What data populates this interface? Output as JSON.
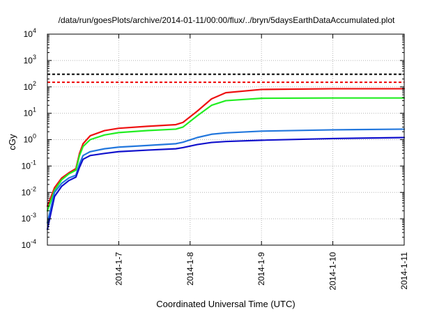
{
  "chart_data": {
    "type": "line",
    "title": "/data/run/goesPlots/archive/2014-01-11/00:00/flux/../bryn/5daysEarthDataAccumulated.plot",
    "xlabel": "Coordinated Universal Time (UTC)",
    "ylabel": "cGy",
    "yscale": "log",
    "ylim": [
      0.0001,
      10000
    ],
    "xlim": [
      "2014-01-06 00:00",
      "2014-01-11 00:00"
    ],
    "grid": true,
    "x_ticks": [
      "2014-1-7",
      "2014-1-8",
      "2014-1-9",
      "2014-1-10",
      "2014-1-11"
    ],
    "y_ticks": [
      {
        "base": "10",
        "exp": "-4"
      },
      {
        "base": "10",
        "exp": "-3"
      },
      {
        "base": "10",
        "exp": "-2"
      },
      {
        "base": "10",
        "exp": "-1"
      },
      {
        "base": "10",
        "exp": "0"
      },
      {
        "base": "10",
        "exp": "1"
      },
      {
        "base": "10",
        "exp": "2"
      },
      {
        "base": "10",
        "exp": "3"
      },
      {
        "base": "10",
        "exp": "4"
      }
    ],
    "hlines": [
      {
        "y": 300,
        "color": "#000000",
        "style": "dashed"
      },
      {
        "y": 150,
        "color": "#ee0000",
        "style": "dashed"
      }
    ],
    "series": [
      {
        "color": "#ee1111",
        "x": [
          "2014-01-06 00:00",
          "2014-01-06 02:24",
          "2014-01-06 04:48",
          "2014-01-06 07:12",
          "2014-01-06 09:36",
          "2014-01-06 10:48",
          "2014-01-06 12:00",
          "2014-01-06 14:24",
          "2014-01-06 19:12",
          "2014-01-07 00:00",
          "2014-01-07 09:36",
          "2014-01-07 19:12",
          "2014-01-07 21:36",
          "2014-01-08 02:24",
          "2014-01-08 07:12",
          "2014-01-08 12:00",
          "2014-01-09 00:00",
          "2014-01-10 00:00",
          "2014-01-11 00:00"
        ],
        "y": [
          0.003,
          0.015,
          0.035,
          0.055,
          0.08,
          0.3,
          0.7,
          1.4,
          2.2,
          2.7,
          3.2,
          3.7,
          4.5,
          12,
          35,
          60,
          80,
          85,
          85
        ]
      },
      {
        "color": "#22ee22",
        "x": [
          "2014-01-06 00:00",
          "2014-01-06 02:24",
          "2014-01-06 04:48",
          "2014-01-06 07:12",
          "2014-01-06 09:36",
          "2014-01-06 10:48",
          "2014-01-06 12:00",
          "2014-01-06 14:24",
          "2014-01-06 19:12",
          "2014-01-07 00:00",
          "2014-01-07 09:36",
          "2014-01-07 19:12",
          "2014-01-07 21:36",
          "2014-01-08 02:24",
          "2014-01-08 07:12",
          "2014-01-08 12:00",
          "2014-01-09 00:00",
          "2014-01-10 00:00",
          "2014-01-11 00:00"
        ],
        "y": [
          0.002,
          0.012,
          0.03,
          0.05,
          0.07,
          0.25,
          0.55,
          1.0,
          1.5,
          1.85,
          2.2,
          2.5,
          3.0,
          8,
          20,
          30,
          37,
          38,
          38
        ]
      },
      {
        "color": "#2277dd",
        "x": [
          "2014-01-06 00:00",
          "2014-01-06 02:24",
          "2014-01-06 04:48",
          "2014-01-06 07:12",
          "2014-01-06 09:36",
          "2014-01-06 10:48",
          "2014-01-06 12:00",
          "2014-01-06 14:24",
          "2014-01-06 19:12",
          "2014-01-07 00:00",
          "2014-01-07 09:36",
          "2014-01-07 19:12",
          "2014-01-07 21:36",
          "2014-01-08 02:24",
          "2014-01-08 07:12",
          "2014-01-08 12:00",
          "2014-01-09 00:00",
          "2014-01-10 00:00",
          "2014-01-11 00:00"
        ],
        "y": [
          0.0007,
          0.01,
          0.022,
          0.035,
          0.045,
          0.12,
          0.25,
          0.35,
          0.45,
          0.52,
          0.6,
          0.7,
          0.8,
          1.2,
          1.6,
          1.8,
          2.1,
          2.35,
          2.5
        ]
      },
      {
        "color": "#1111cc",
        "x": [
          "2014-01-06 00:00",
          "2014-01-06 02:24",
          "2014-01-06 04:48",
          "2014-01-06 07:12",
          "2014-01-06 09:36",
          "2014-01-06 10:48",
          "2014-01-06 12:00",
          "2014-01-06 14:24",
          "2014-01-06 19:12",
          "2014-01-07 00:00",
          "2014-01-07 09:36",
          "2014-01-07 19:12",
          "2014-01-07 21:36",
          "2014-01-08 02:24",
          "2014-01-08 07:12",
          "2014-01-08 12:00",
          "2014-01-09 00:00",
          "2014-01-10 00:00",
          "2014-01-11 00:00"
        ],
        "y": [
          0.0004,
          0.007,
          0.017,
          0.028,
          0.038,
          0.09,
          0.18,
          0.25,
          0.3,
          0.35,
          0.4,
          0.45,
          0.5,
          0.65,
          0.78,
          0.85,
          0.95,
          1.1,
          1.2
        ]
      }
    ]
  }
}
